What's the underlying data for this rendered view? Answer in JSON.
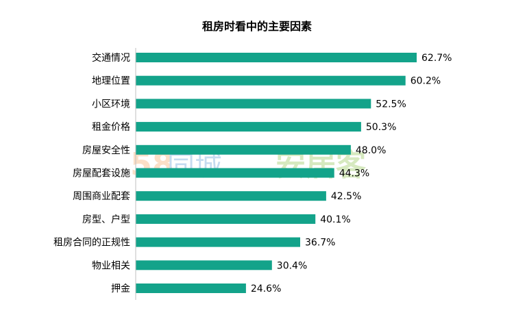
{
  "chart_data": {
    "type": "bar",
    "orientation": "horizontal",
    "title": "租房时看中的主要因素",
    "categories": [
      "交通情况",
      "地理位置",
      "小区环境",
      "租金价格",
      "房屋安全性",
      "房屋配套设施",
      "周围商业配套",
      "房型、户型",
      "租房合同的正规性",
      "物业相关",
      "押金"
    ],
    "values": [
      62.7,
      60.2,
      52.5,
      50.3,
      48.0,
      44.3,
      42.5,
      40.1,
      36.7,
      30.4,
      24.6
    ],
    "value_labels": [
      "62.7%",
      "60.2%",
      "52.5%",
      "50.3%",
      "48.0%",
      "44.3%",
      "42.5%",
      "40.1%",
      "36.7%",
      "30.4%",
      "24.6%"
    ],
    "xlim": [
      0,
      65
    ],
    "grid": false,
    "legend": "none",
    "bar_color": "#13A38A",
    "axis_color": "#BFBFBF"
  },
  "watermark": {
    "number": "58",
    "brand": "同城",
    "partner": "安居客"
  }
}
